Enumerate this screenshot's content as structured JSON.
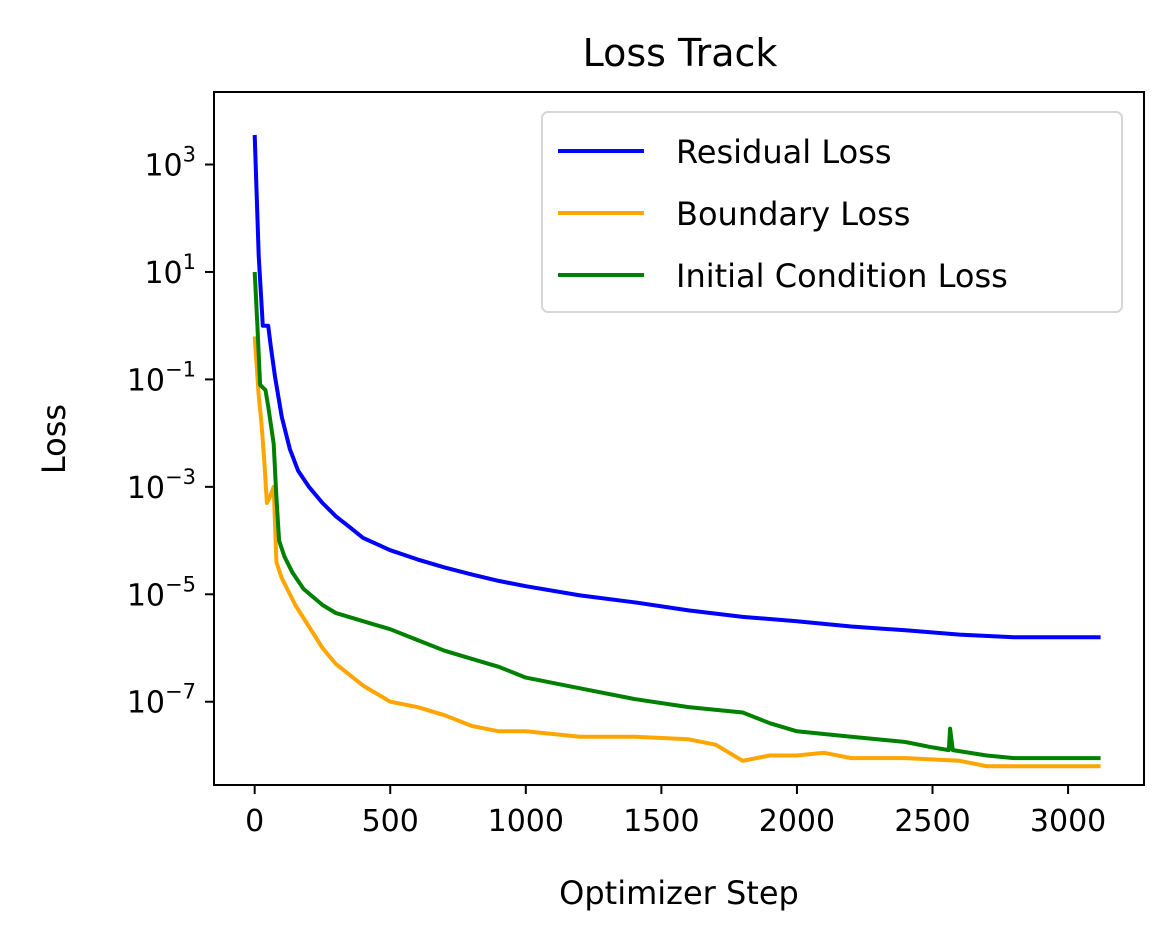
{
  "chart_data": {
    "type": "line",
    "title": "Loss Track",
    "xlabel": "Optimizer Step",
    "ylabel": "Loss",
    "xscale": "linear",
    "yscale": "log",
    "xlim": [
      -150,
      3280
    ],
    "ylim_log10": [
      -8.55,
      4.35
    ],
    "x_ticks": [
      0,
      500,
      1000,
      1500,
      2000,
      2500,
      3000
    ],
    "x_tick_labels": [
      "0",
      "500",
      "1000",
      "1500",
      "2000",
      "2500",
      "3000"
    ],
    "y_ticks_log10": [
      3,
      1,
      -1,
      -3,
      -5,
      -7
    ],
    "y_tick_base": "10",
    "y_tick_exponents": [
      "3",
      "1",
      "−1",
      "−3",
      "−5",
      "−7"
    ],
    "legend_position": "upper right",
    "series": [
      {
        "name": "Residual Loss",
        "color": "#0000ff",
        "points": [
          [
            0,
            3.55
          ],
          [
            15,
            1.3
          ],
          [
            30,
            0.0
          ],
          [
            50,
            0.0
          ],
          [
            60,
            -0.4
          ],
          [
            75,
            -0.95
          ],
          [
            100,
            -1.7
          ],
          [
            130,
            -2.3
          ],
          [
            160,
            -2.7
          ],
          [
            200,
            -3.0
          ],
          [
            250,
            -3.3
          ],
          [
            300,
            -3.55
          ],
          [
            350,
            -3.75
          ],
          [
            400,
            -3.95
          ],
          [
            500,
            -4.18
          ],
          [
            600,
            -4.35
          ],
          [
            700,
            -4.5
          ],
          [
            800,
            -4.63
          ],
          [
            900,
            -4.75
          ],
          [
            1000,
            -4.85
          ],
          [
            1200,
            -5.02
          ],
          [
            1400,
            -5.15
          ],
          [
            1600,
            -5.3
          ],
          [
            1800,
            -5.42
          ],
          [
            2000,
            -5.5
          ],
          [
            2200,
            -5.6
          ],
          [
            2400,
            -5.67
          ],
          [
            2600,
            -5.75
          ],
          [
            2800,
            -5.8
          ],
          [
            3000,
            -5.8
          ],
          [
            3120,
            -5.8
          ]
        ]
      },
      {
        "name": "Boundary Loss",
        "color": "#ffa500",
        "points": [
          [
            0,
            -0.2
          ],
          [
            15,
            -1.3
          ],
          [
            25,
            -1.8
          ],
          [
            35,
            -2.5
          ],
          [
            45,
            -3.3
          ],
          [
            55,
            -3.2
          ],
          [
            70,
            -3.0
          ],
          [
            80,
            -4.4
          ],
          [
            100,
            -4.7
          ],
          [
            120,
            -4.9
          ],
          [
            150,
            -5.2
          ],
          [
            200,
            -5.6
          ],
          [
            250,
            -6.0
          ],
          [
            300,
            -6.3
          ],
          [
            400,
            -6.7
          ],
          [
            500,
            -7.0
          ],
          [
            600,
            -7.1
          ],
          [
            700,
            -7.25
          ],
          [
            800,
            -7.45
          ],
          [
            900,
            -7.55
          ],
          [
            1000,
            -7.55
          ],
          [
            1200,
            -7.65
          ],
          [
            1400,
            -7.65
          ],
          [
            1600,
            -7.7
          ],
          [
            1700,
            -7.8
          ],
          [
            1800,
            -8.1
          ],
          [
            1900,
            -8.0
          ],
          [
            2000,
            -8.0
          ],
          [
            2100,
            -7.95
          ],
          [
            2200,
            -8.05
          ],
          [
            2400,
            -8.05
          ],
          [
            2600,
            -8.1
          ],
          [
            2700,
            -8.2
          ],
          [
            3120,
            -8.2
          ]
        ]
      },
      {
        "name": "Initial Condition Loss",
        "color": "#008000",
        "points": [
          [
            0,
            1.0
          ],
          [
            10,
            0.0
          ],
          [
            20,
            -1.1
          ],
          [
            40,
            -1.2
          ],
          [
            50,
            -1.5
          ],
          [
            70,
            -2.2
          ],
          [
            80,
            -3.2
          ],
          [
            90,
            -4.0
          ],
          [
            110,
            -4.3
          ],
          [
            140,
            -4.6
          ],
          [
            180,
            -4.9
          ],
          [
            250,
            -5.2
          ],
          [
            300,
            -5.35
          ],
          [
            400,
            -5.5
          ],
          [
            500,
            -5.65
          ],
          [
            600,
            -5.85
          ],
          [
            700,
            -6.05
          ],
          [
            800,
            -6.2
          ],
          [
            900,
            -6.35
          ],
          [
            1000,
            -6.55
          ],
          [
            1200,
            -6.75
          ],
          [
            1400,
            -6.95
          ],
          [
            1600,
            -7.1
          ],
          [
            1800,
            -7.2
          ],
          [
            1900,
            -7.4
          ],
          [
            2000,
            -7.55
          ],
          [
            2200,
            -7.65
          ],
          [
            2400,
            -7.75
          ],
          [
            2500,
            -7.85
          ],
          [
            2560,
            -7.9
          ],
          [
            2565,
            -7.5
          ],
          [
            2575,
            -7.9
          ],
          [
            2700,
            -8.0
          ],
          [
            2800,
            -8.05
          ],
          [
            3120,
            -8.05
          ]
        ]
      }
    ]
  }
}
